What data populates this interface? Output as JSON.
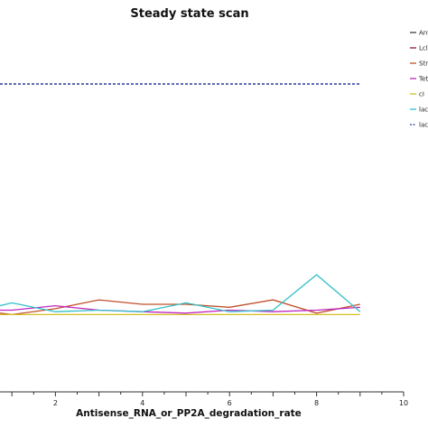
{
  "chart_data": {
    "type": "line",
    "title": "Steady state scan",
    "xlabel": "Antisense_RNA_or_PP2A_degradation_rate",
    "ylabel": "",
    "xlim": [
      0,
      10
    ],
    "x_ticks": [
      "2",
      "4",
      "6",
      "8",
      "10"
    ],
    "grid": false,
    "legend_position": "right",
    "x": [
      0,
      1,
      2,
      3,
      4,
      5,
      6,
      7,
      8,
      9
    ],
    "series": [
      {
        "name": "Ant",
        "color": "#404040",
        "dash": false,
        "values": [
          null,
          null,
          null,
          null,
          null,
          null,
          null,
          null,
          null,
          null
        ]
      },
      {
        "name": "Lcl",
        "color": "#8b1a4a",
        "dash": false,
        "values": [
          null,
          null,
          null,
          null,
          null,
          null,
          null,
          null,
          null,
          null
        ]
      },
      {
        "name": "Str",
        "color": "#c0502a",
        "dash": false,
        "values": [
          0.25,
          0.24,
          0.28,
          0.34,
          0.31,
          0.31,
          0.29,
          0.34,
          0.25,
          0.31
        ]
      },
      {
        "name": "Tet",
        "color": "#c026c0",
        "dash": false,
        "values": [
          0.27,
          0.27,
          0.3,
          0.27,
          0.26,
          0.25,
          0.27,
          0.26,
          0.27,
          0.29
        ]
      },
      {
        "name": "cI",
        "color": "#d4c020",
        "dash": false,
        "values": [
          0.24,
          0.24,
          0.24,
          0.24,
          0.24,
          0.24,
          0.24,
          0.24,
          0.24,
          0.24
        ]
      },
      {
        "name": "lac",
        "color": "#30c0c8",
        "dash": false,
        "values": [
          0.3,
          0.32,
          0.26,
          0.27,
          0.26,
          0.32,
          0.26,
          0.27,
          0.51,
          0.26
        ]
      },
      {
        "name": "lac",
        "color": "#2a3a9a",
        "dash": true,
        "values": [
          1.8,
          1.8,
          1.8,
          1.8,
          1.8,
          1.8,
          1.8,
          1.8,
          1.8,
          1.8
        ]
      }
    ]
  }
}
